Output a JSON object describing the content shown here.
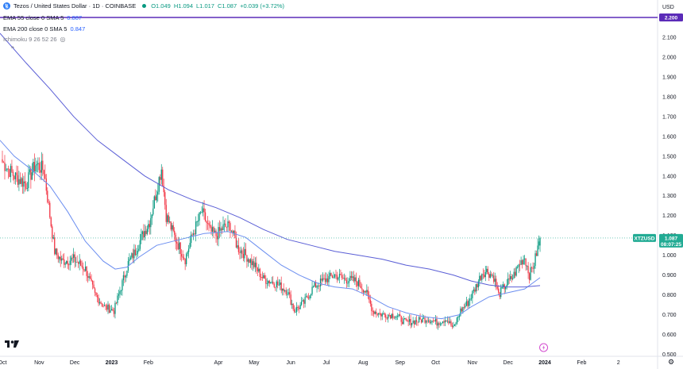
{
  "symbol": {
    "title": "Tezos / United States Dollar · 1D · COINBASE",
    "logo_letter": "ꜩ",
    "open": "O1.049",
    "high": "H1.094",
    "low": "L1.017",
    "close": "C1.087",
    "change": "+0.039 (+3.72%)",
    "currency": "USD"
  },
  "indicators": [
    {
      "label": "EMA 55 close 0 SMA 5",
      "value": "0.887"
    },
    {
      "label": "EMA 200 close 0 SMA 5",
      "value": "0.847"
    },
    {
      "label": "Ichimoku 9 26 52 26",
      "value": ""
    }
  ],
  "colors": {
    "up": "#089981",
    "down": "#f23645",
    "ema55": "#6b8ef0",
    "ema200": "#5b5fd6",
    "hline": "#5b2bb8",
    "price_tag": "#22ab94"
  },
  "chart_data": {
    "type": "candlestick",
    "title": "Tezos / United States Dollar · 1D · COINBASE",
    "ylim": [
      0.49,
      2.24
    ],
    "yticks": [
      "2.100",
      "2.000",
      "1.900",
      "1.800",
      "1.700",
      "1.600",
      "1.500",
      "1.400",
      "1.300",
      "1.200",
      "1.100",
      "1.000",
      "0.900",
      "0.800",
      "0.700",
      "0.600",
      "0.500"
    ],
    "ytick_values": [
      2.1,
      2.0,
      1.9,
      1.8,
      1.7,
      1.6,
      1.5,
      1.4,
      1.3,
      1.2,
      1.1,
      1.0,
      0.9,
      0.8,
      0.7,
      0.6,
      0.5
    ],
    "xticks": [
      "Oct",
      "Nov",
      "Dec",
      "2023",
      "Feb",
      "Apr",
      "May",
      "Jun",
      "Jul",
      "Aug",
      "Sep",
      "Oct",
      "Nov",
      "Dec",
      "2024",
      "Feb",
      "2"
    ],
    "xtick_days": [
      0,
      31,
      61,
      92,
      123,
      182,
      212,
      243,
      273,
      304,
      335,
      365,
      396,
      426,
      457,
      488,
      519
    ],
    "x_range_days": [
      -2,
      552
    ],
    "last_day": 453,
    "price_anchors": [
      [
        0,
        1.47
      ],
      [
        10,
        1.4
      ],
      [
        20,
        1.36
      ],
      [
        28,
        1.46
      ],
      [
        35,
        1.43
      ],
      [
        40,
        1.2
      ],
      [
        44,
        1.02
      ],
      [
        50,
        0.97
      ],
      [
        60,
        0.98
      ],
      [
        70,
        0.93
      ],
      [
        78,
        0.8
      ],
      [
        86,
        0.74
      ],
      [
        94,
        0.72
      ],
      [
        100,
        0.84
      ],
      [
        106,
        0.96
      ],
      [
        112,
        1.02
      ],
      [
        118,
        1.1
      ],
      [
        124,
        1.17
      ],
      [
        130,
        1.33
      ],
      [
        134,
        1.44
      ],
      [
        138,
        1.2
      ],
      [
        146,
        1.08
      ],
      [
        154,
        0.98
      ],
      [
        160,
        1.1
      ],
      [
        168,
        1.22
      ],
      [
        175,
        1.12
      ],
      [
        180,
        1.1
      ],
      [
        186,
        1.14
      ],
      [
        192,
        1.15
      ],
      [
        198,
        1.04
      ],
      [
        205,
        1.0
      ],
      [
        212,
        0.95
      ],
      [
        220,
        0.88
      ],
      [
        230,
        0.86
      ],
      [
        240,
        0.82
      ],
      [
        246,
        0.72
      ],
      [
        254,
        0.76
      ],
      [
        262,
        0.84
      ],
      [
        270,
        0.87
      ],
      [
        280,
        0.9
      ],
      [
        288,
        0.88
      ],
      [
        298,
        0.87
      ],
      [
        306,
        0.82
      ],
      [
        312,
        0.72
      ],
      [
        320,
        0.7
      ],
      [
        330,
        0.7
      ],
      [
        340,
        0.66
      ],
      [
        350,
        0.67
      ],
      [
        358,
        0.68
      ],
      [
        366,
        0.66
      ],
      [
        374,
        0.68
      ],
      [
        380,
        0.63
      ],
      [
        386,
        0.72
      ],
      [
        392,
        0.76
      ],
      [
        398,
        0.83
      ],
      [
        404,
        0.91
      ],
      [
        408,
        0.92
      ],
      [
        414,
        0.89
      ],
      [
        418,
        0.8
      ],
      [
        424,
        0.85
      ],
      [
        430,
        0.89
      ],
      [
        436,
        0.96
      ],
      [
        440,
        0.99
      ],
      [
        444,
        0.9
      ],
      [
        448,
        0.96
      ],
      [
        453,
        1.087
      ]
    ],
    "series": [
      {
        "name": "EMA 55",
        "color": "#6b8ef0",
        "points": [
          [
            -2,
            1.58
          ],
          [
            10,
            1.5
          ],
          [
            25,
            1.43
          ],
          [
            40,
            1.35
          ],
          [
            55,
            1.22
          ],
          [
            70,
            1.07
          ],
          [
            85,
            0.97
          ],
          [
            95,
            0.93
          ],
          [
            105,
            0.94
          ],
          [
            115,
            0.99
          ],
          [
            130,
            1.05
          ],
          [
            150,
            1.08
          ],
          [
            170,
            1.11
          ],
          [
            190,
            1.12
          ],
          [
            205,
            1.09
          ],
          [
            220,
            1.02
          ],
          [
            235,
            0.95
          ],
          [
            250,
            0.9
          ],
          [
            265,
            0.86
          ],
          [
            280,
            0.84
          ],
          [
            295,
            0.83
          ],
          [
            310,
            0.79
          ],
          [
            325,
            0.74
          ],
          [
            340,
            0.71
          ],
          [
            355,
            0.69
          ],
          [
            370,
            0.68
          ],
          [
            385,
            0.7
          ],
          [
            395,
            0.74
          ],
          [
            410,
            0.79
          ],
          [
            425,
            0.81
          ],
          [
            440,
            0.83
          ],
          [
            453,
            0.887
          ]
        ]
      },
      {
        "name": "EMA 200",
        "color": "#5b5fd6",
        "points": [
          [
            -2,
            2.12
          ],
          [
            20,
            1.97
          ],
          [
            40,
            1.84
          ],
          [
            60,
            1.7
          ],
          [
            80,
            1.58
          ],
          [
            100,
            1.49
          ],
          [
            120,
            1.4
          ],
          [
            140,
            1.33
          ],
          [
            160,
            1.28
          ],
          [
            180,
            1.24
          ],
          [
            200,
            1.19
          ],
          [
            220,
            1.13
          ],
          [
            240,
            1.08
          ],
          [
            260,
            1.05
          ],
          [
            280,
            1.02
          ],
          [
            300,
            1.0
          ],
          [
            320,
            0.98
          ],
          [
            340,
            0.95
          ],
          [
            360,
            0.93
          ],
          [
            380,
            0.9
          ],
          [
            395,
            0.87
          ],
          [
            410,
            0.85
          ],
          [
            425,
            0.84
          ],
          [
            440,
            0.84
          ],
          [
            453,
            0.847
          ]
        ]
      }
    ],
    "hline": {
      "value": 2.2,
      "label": "2.200"
    },
    "last_price": {
      "value": 1.087,
      "label": "1.087",
      "ticker": "XTZUSD",
      "countdown": "08:07:25"
    }
  }
}
